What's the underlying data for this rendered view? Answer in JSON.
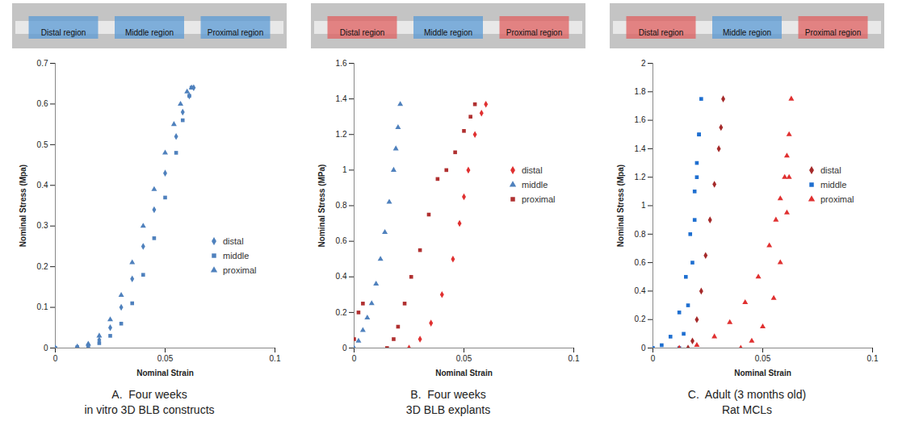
{
  "chart_data": [
    {
      "type": "scatter",
      "title": "A.  Four weeks",
      "subtitle": "in vitro 3D BLB constructs",
      "x_label": "Nominal Strain",
      "y_label": "Nominal Stress (Mpa)",
      "regions": [
        {
          "name": "Distal region",
          "color": "#5b9bd5"
        },
        {
          "name": "Middle region",
          "color": "#5b9bd5"
        },
        {
          "name": "Proximal region",
          "color": "#5b9bd5"
        }
      ],
      "xlim": [
        0,
        0.1
      ],
      "xticks": [
        0,
        0.05,
        0.1
      ],
      "ylim": [
        0,
        0.7
      ],
      "yticks": [
        0,
        0.1,
        0.2,
        0.3,
        0.4,
        0.5,
        0.6,
        0.7
      ],
      "legend": "lower right",
      "grid": false,
      "series": [
        {
          "name": "distal",
          "color": "#4f81bd",
          "marker": "diamond",
          "x": [
            0,
            0.01,
            0.015,
            0.02,
            0.025,
            0.03,
            0.035,
            0.04,
            0.045,
            0.05,
            0.055,
            0.058,
            0.061,
            0.063
          ],
          "values": [
            0,
            0.002,
            0.008,
            0.02,
            0.05,
            0.1,
            0.17,
            0.25,
            0.34,
            0.43,
            0.52,
            0.58,
            0.62,
            0.64
          ]
        },
        {
          "name": "middle",
          "color": "#4f81bd",
          "marker": "square",
          "x": [
            0,
            0.01,
            0.015,
            0.02,
            0.025,
            0.03,
            0.035,
            0.04,
            0.045,
            0.05,
            0.055,
            0.058,
            0.061,
            0.062
          ],
          "values": [
            0,
            0.002,
            0.005,
            0.012,
            0.03,
            0.06,
            0.11,
            0.18,
            0.27,
            0.37,
            0.48,
            0.56,
            0.62,
            0.64
          ]
        },
        {
          "name": "proximal",
          "color": "#4f81bd",
          "marker": "triangle",
          "x": [
            0,
            0.01,
            0.015,
            0.02,
            0.025,
            0.03,
            0.035,
            0.04,
            0.045,
            0.05,
            0.054,
            0.057,
            0.06,
            0.062
          ],
          "values": [
            0,
            0.003,
            0.01,
            0.03,
            0.07,
            0.13,
            0.21,
            0.3,
            0.39,
            0.48,
            0.55,
            0.6,
            0.63,
            0.64
          ]
        }
      ]
    },
    {
      "type": "scatter",
      "title": "B.  Four weeks",
      "subtitle": "3D BLB explants",
      "x_label": "Nominal Strain",
      "y_label": "Nominal Stress (MPa)",
      "regions": [
        {
          "name": "Distal region",
          "color": "#e06060"
        },
        {
          "name": "Middle region",
          "color": "#5b9bd5"
        },
        {
          "name": "Proximal region",
          "color": "#e06060"
        }
      ],
      "xlim": [
        0,
        0.1
      ],
      "xticks": [
        0,
        0.05,
        0.1
      ],
      "ylim": [
        0,
        1.6
      ],
      "yticks": [
        0,
        0.2,
        0.4,
        0.6,
        0.8,
        1,
        1.2,
        1.4,
        1.6
      ],
      "legend": "right",
      "grid": false,
      "series": [
        {
          "name": "distal",
          "color": "#e03030",
          "marker": "diamond",
          "x": [
            0.025,
            0.03,
            0.035,
            0.04,
            0.045,
            0.048,
            0.05,
            0.052,
            0.055,
            0.058,
            0.06
          ],
          "values": [
            0,
            0.05,
            0.14,
            0.3,
            0.5,
            0.7,
            0.85,
            1.0,
            1.2,
            1.32,
            1.37
          ]
        },
        {
          "name": "middle",
          "color": "#4f81bd",
          "marker": "triangle",
          "x": [
            0,
            0.002,
            0.004,
            0.006,
            0.008,
            0.01,
            0.012,
            0.014,
            0.016,
            0.018,
            0.019,
            0.02,
            0.021
          ],
          "values": [
            0,
            0.04,
            0.1,
            0.17,
            0.25,
            0.36,
            0.5,
            0.65,
            0.82,
            1.0,
            1.12,
            1.24,
            1.37
          ]
        },
        {
          "name": "proximal",
          "color": "#b03030",
          "marker": "square",
          "x": [
            0,
            0.002,
            0.004,
            0.015,
            0.018,
            0.02,
            0.023,
            0.026,
            0.03,
            0.034,
            0.038,
            0.042,
            0.046,
            0.05,
            0.053,
            0.055
          ],
          "values": [
            0.05,
            0.2,
            0.25,
            0,
            0.05,
            0.12,
            0.25,
            0.4,
            0.55,
            0.75,
            0.95,
            1.0,
            1.1,
            1.22,
            1.3,
            1.37
          ]
        }
      ]
    },
    {
      "type": "scatter",
      "title": "C.  Adult (3 months old)",
      "subtitle": "Rat MCLs",
      "x_label": "Nominal Strain",
      "y_label": "Nominal Stress (Mpa)",
      "regions": [
        {
          "name": "Distal region",
          "color": "#e06060"
        },
        {
          "name": "Middle region",
          "color": "#5b9bd5"
        },
        {
          "name": "Proximal region",
          "color": "#e06060"
        }
      ],
      "xlim": [
        0,
        0.1
      ],
      "xticks": [
        0,
        0.05,
        0.1
      ],
      "ylim": [
        0,
        2
      ],
      "yticks": [
        0,
        0.2,
        0.4,
        0.6,
        0.8,
        1,
        1.2,
        1.4,
        1.6,
        1.8,
        2
      ],
      "legend": "right",
      "grid": false,
      "series": [
        {
          "name": "distal",
          "color": "#a52a2a",
          "marker": "diamond",
          "x": [
            0.016,
            0.018,
            0.02,
            0.022,
            0.024,
            0.026,
            0.028,
            0.03,
            0.031,
            0.032
          ],
          "values": [
            0,
            0.05,
            0.2,
            0.4,
            0.65,
            0.9,
            1.15,
            1.4,
            1.55,
            1.75
          ]
        },
        {
          "name": "middle",
          "color": "#1f6fd0",
          "marker": "square",
          "x": [
            0,
            0.004,
            0.008,
            0.012,
            0.015,
            0.017,
            0.019,
            0.02,
            0.021,
            0.022,
            0.012,
            0.014,
            0.016,
            0.018,
            0.019,
            0.02,
            0.021
          ],
          "values": [
            0,
            0.02,
            0.08,
            0.25,
            0.5,
            0.8,
            1.1,
            1.3,
            1.5,
            1.75,
            0,
            0.1,
            0.3,
            0.6,
            0.9,
            1.2,
            1.5
          ]
        },
        {
          "name": "proximal",
          "color": "#e03030",
          "marker": "triangle",
          "x": [
            0.012,
            0.02,
            0.028,
            0.035,
            0.042,
            0.048,
            0.053,
            0.056,
            0.058,
            0.06,
            0.061,
            0.062,
            0.063,
            0.04,
            0.045,
            0.05,
            0.055,
            0.058,
            0.061,
            0.062
          ],
          "values": [
            0,
            0.02,
            0.08,
            0.18,
            0.32,
            0.5,
            0.72,
            0.9,
            1.05,
            1.2,
            1.35,
            1.5,
            1.75,
            0,
            0.05,
            0.15,
            0.35,
            0.6,
            0.95,
            1.2
          ]
        }
      ]
    }
  ]
}
